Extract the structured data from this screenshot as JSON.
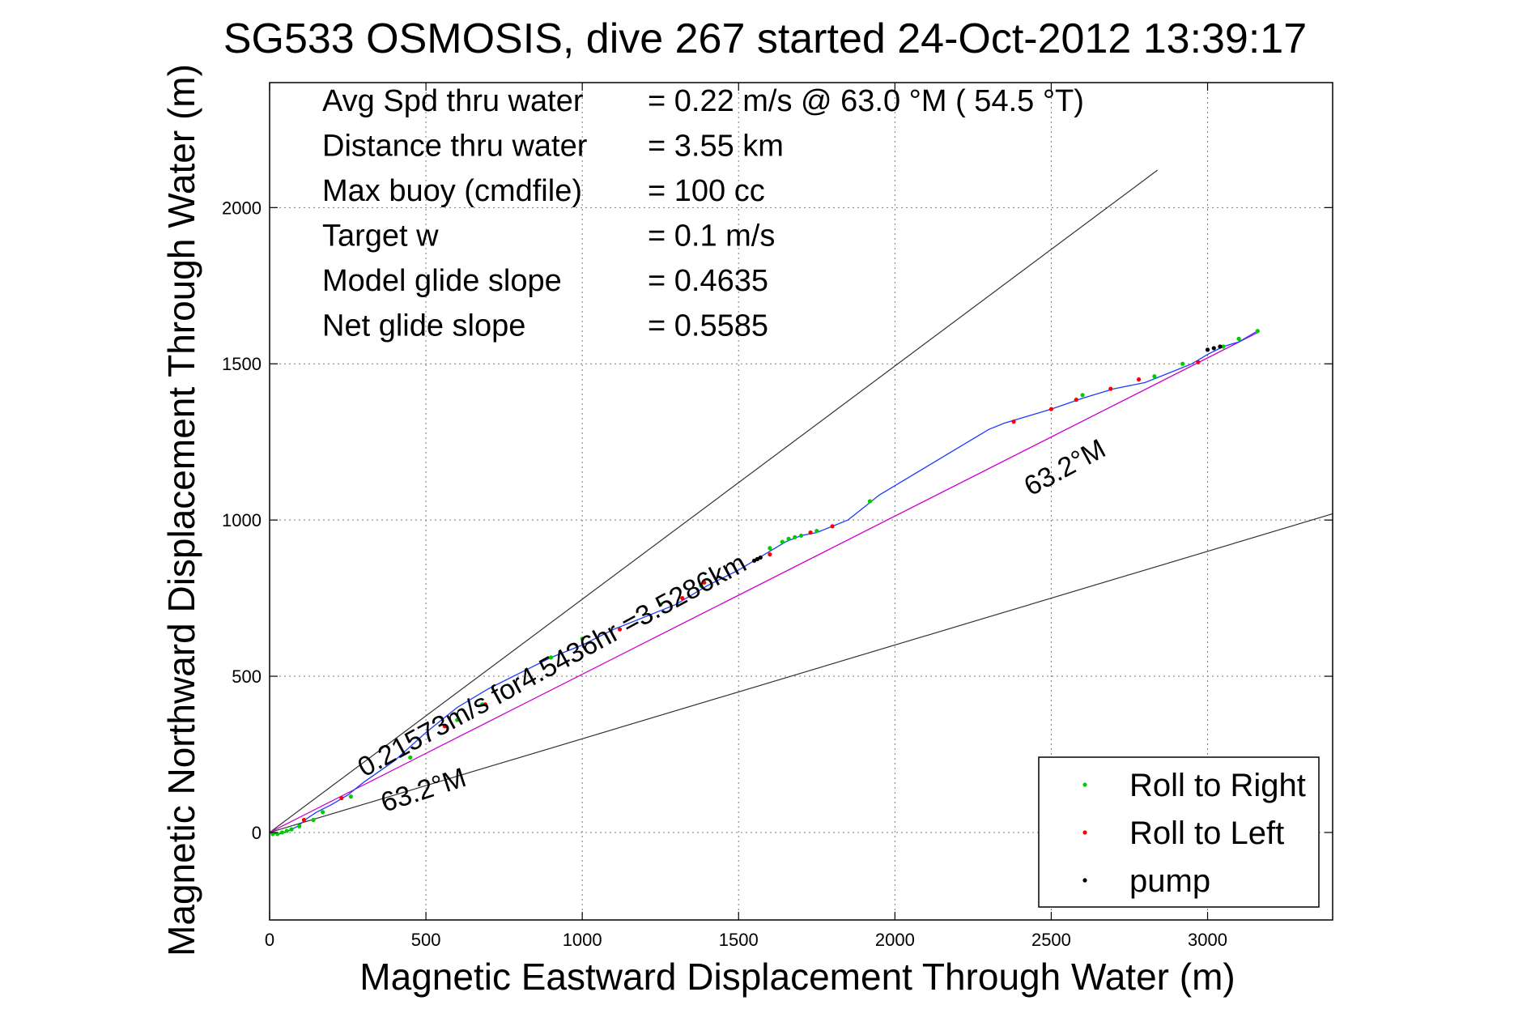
{
  "chart_data": {
    "type": "line",
    "title": "SG533 OSMOSIS, dive 267 started 24-Oct-2012 13:39:17",
    "xlabel": "Magnetic Eastward Displacement Through Water (m)",
    "ylabel": "Magnetic Northward Displacement Through Water (m)",
    "xlim": [
      0,
      3400
    ],
    "ylim": [
      -280,
      2400
    ],
    "xticks": [
      0,
      500,
      1000,
      1500,
      2000,
      2500,
      3000
    ],
    "yticks": [
      0,
      500,
      1000,
      1500,
      2000
    ],
    "grid": true,
    "legend_position": "bottom-right",
    "stats": [
      {
        "label": "Avg Spd thru water",
        "value": "=  0.22 m/s @  63.0 °M ( 54.5 °T)"
      },
      {
        "label": "Distance thru water",
        "value": "=  3.55 km"
      },
      {
        "label": "Max buoy (cmdfile)",
        "value": "= 100 cc"
      },
      {
        "label": "Target w",
        "value": "= 0.1 m/s"
      },
      {
        "label": "Model glide slope",
        "value": "= 0.4635"
      },
      {
        "label": "Net glide slope",
        "value": "= 0.5585"
      }
    ],
    "annotations": [
      {
        "text": "0.21573m/s for4.5436hr =3.5286km"
      },
      {
        "text": "63.2°M"
      },
      {
        "text": "63.2°M"
      }
    ],
    "reference_lines": [
      {
        "name": "upper-bound",
        "x": [
          0,
          2840
        ],
        "y": [
          0,
          2120
        ]
      },
      {
        "name": "lower-bound",
        "x": [
          0,
          3400
        ],
        "y": [
          0,
          1020
        ]
      }
    ],
    "heading_line": {
      "x": [
        0,
        3160
      ],
      "y": [
        0,
        1600
      ]
    },
    "track": {
      "x": [
        0,
        30,
        60,
        90,
        120,
        150,
        200,
        250,
        300,
        400,
        500,
        600,
        700,
        800,
        900,
        1000,
        1100,
        1200,
        1300,
        1400,
        1500,
        1550,
        1600,
        1650,
        1700,
        1750,
        1800,
        1850,
        1900,
        1950,
        2000,
        2100,
        2200,
        2300,
        2350,
        2400,
        2450,
        2500,
        2600,
        2700,
        2800,
        2900,
        2950,
        3000,
        3050,
        3100,
        3160
      ],
      "y": [
        0,
        -5,
        5,
        20,
        45,
        65,
        90,
        120,
        160,
        230,
        320,
        400,
        460,
        510,
        560,
        600,
        650,
        690,
        730,
        790,
        840,
        870,
        900,
        930,
        950,
        960,
        980,
        1000,
        1040,
        1080,
        1110,
        1170,
        1230,
        1290,
        1310,
        1325,
        1340,
        1355,
        1390,
        1420,
        1440,
        1480,
        1500,
        1530,
        1555,
        1570,
        1605
      ]
    },
    "series": [
      {
        "name": "Roll to Right",
        "color": "#00cc00",
        "x": [
          10,
          25,
          40,
          55,
          70,
          95,
          140,
          170,
          260,
          450,
          600,
          680,
          900,
          1000,
          1250,
          1380,
          1600,
          1640,
          1660,
          1680,
          1700,
          1750,
          1920,
          2600,
          2830,
          2920,
          3050,
          3100,
          3160
        ],
        "y": [
          -5,
          -5,
          0,
          5,
          10,
          20,
          40,
          65,
          115,
          240,
          360,
          410,
          560,
          620,
          730,
          790,
          910,
          930,
          940,
          945,
          950,
          965,
          1060,
          1400,
          1460,
          1500,
          1555,
          1580,
          1605
        ]
      },
      {
        "name": "Roll to Left",
        "color": "#ff0000",
        "x": [
          110,
          230,
          560,
          690,
          1120,
          1320,
          1390,
          1600,
          1730,
          1800,
          2380,
          2500,
          2580,
          2690,
          2780,
          2970
        ],
        "y": [
          40,
          110,
          340,
          410,
          650,
          750,
          800,
          890,
          960,
          980,
          1315,
          1355,
          1385,
          1420,
          1450,
          1505
        ]
      },
      {
        "name": "pump",
        "color": "#000000",
        "x": [
          1550,
          1560,
          1570,
          3000,
          3020,
          3040
        ],
        "y": [
          870,
          875,
          880,
          1545,
          1550,
          1555
        ]
      }
    ]
  }
}
